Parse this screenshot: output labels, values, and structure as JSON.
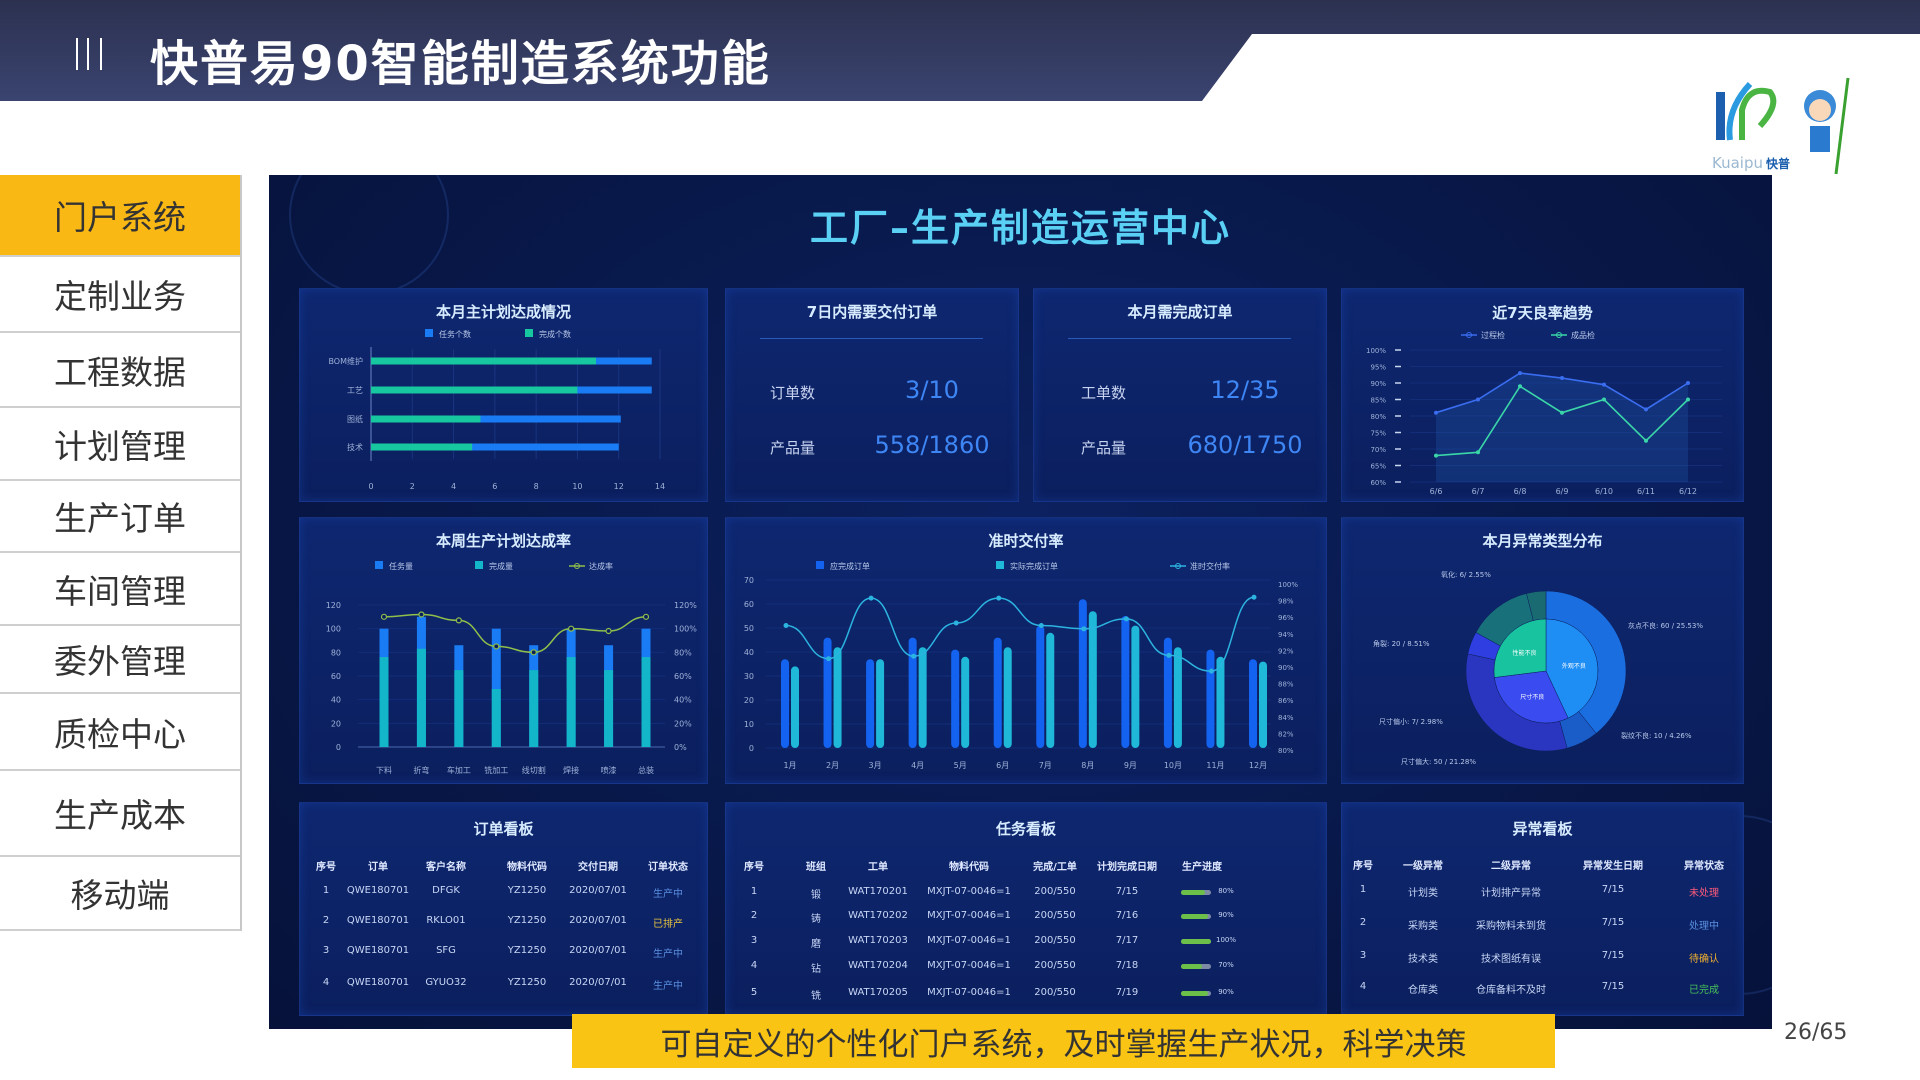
{
  "header": {
    "title": "快普易90智能制造系统功能",
    "menu_icon": "triple-bar-icon"
  },
  "logo": {
    "text": "Kuaipu",
    "cn": "快普"
  },
  "sidebar": {
    "items": [
      {
        "label": "门户系统",
        "active": true
      },
      {
        "label": "定制业务"
      },
      {
        "label": "工程数据"
      },
      {
        "label": "计划管理"
      },
      {
        "label": "生产订单"
      },
      {
        "label": "车间管理"
      },
      {
        "label": "委外管理"
      },
      {
        "label": "质检中心"
      },
      {
        "label": "生产成本"
      },
      {
        "label": "移动端"
      }
    ],
    "active_color": "#f9b814"
  },
  "dashboard": {
    "title": "工厂–生产制造运营中心",
    "delivery7": {
      "title": "7日内需要交付订单",
      "rows": [
        {
          "label": "订单数",
          "value": "3/10"
        },
        {
          "label": "产品量",
          "value": "558/1860"
        }
      ]
    },
    "month_orders": {
      "title": "本月需完成订单",
      "rows": [
        {
          "label": "工单数",
          "value": "12/35"
        },
        {
          "label": "产品量",
          "value": "680/1750"
        }
      ]
    },
    "order_board": {
      "title": "订单看板",
      "columns": [
        "序号",
        "订单",
        "客户名称",
        "物料代码",
        "交付日期",
        "订单状态"
      ],
      "rows": [
        [
          "1",
          "QWE180701",
          "DFGK",
          "YZ1250",
          "2020/07/01",
          "生产中"
        ],
        [
          "2",
          "QWE180701",
          "RKLO01",
          "YZ1250",
          "2020/07/01",
          "已排产"
        ],
        [
          "3",
          "QWE180701",
          "SFG",
          "YZ1250",
          "2020/07/01",
          "生产中"
        ],
        [
          "4",
          "QWE180701",
          "GYUO32",
          "YZ1250",
          "2020/07/01",
          "生产中"
        ]
      ]
    },
    "task_board": {
      "title": "任务看板",
      "columns": [
        "序号",
        "班组",
        "工单",
        "物料代码",
        "完成/工单",
        "计划完成日期",
        "生产进度"
      ],
      "rows": [
        [
          "1",
          "锻",
          "WAT170201",
          "MXJT-07-0046=1",
          "200/550",
          "7/15",
          "80%"
        ],
        [
          "2",
          "铸",
          "WAT170202",
          "MXJT-07-0046=1",
          "200/550",
          "7/16",
          "90%"
        ],
        [
          "3",
          "磨",
          "WAT170203",
          "MXJT-07-0046=1",
          "200/550",
          "7/17",
          "100%"
        ],
        [
          "4",
          "钻",
          "WAT170204",
          "MXJT-07-0046=1",
          "200/550",
          "7/18",
          "70%"
        ],
        [
          "5",
          "铣",
          "WAT170205",
          "MXJT-07-0046=1",
          "200/550",
          "7/19",
          "90%"
        ]
      ],
      "progress": [
        80,
        90,
        100,
        70,
        90
      ]
    },
    "exception_board": {
      "title": "异常看板",
      "columns": [
        "序号",
        "一级异常",
        "二级异常",
        "异常发生日期",
        "异常状态"
      ],
      "rows": [
        [
          "1",
          "计划类",
          "计划排产异常",
          "7/15",
          "未处理"
        ],
        [
          "2",
          "采购类",
          "采购物料未到货",
          "7/15",
          "处理中"
        ],
        [
          "3",
          "技术类",
          "技术图纸有误",
          "7/15",
          "待确认"
        ],
        [
          "4",
          "仓库类",
          "仓库备料不及时",
          "7/15",
          "已完成"
        ]
      ]
    },
    "status_colors": {
      "生产中": "#5a8fe0",
      "已排产": "#e6c340",
      "未处理": "#ff5a7a",
      "处理中": "#5a8fe0",
      "待确认": "#f0b030",
      "已完成": "#46c05a"
    }
  },
  "chart_data": [
    {
      "id": "master-plan",
      "type": "bar",
      "orientation": "horizontal",
      "stacked_overlay": true,
      "title": "本月主计划达成情况",
      "categories": [
        "BOM维护",
        "工艺",
        "图纸",
        "技术"
      ],
      "series": [
        {
          "name": "任务个数",
          "values": [
            13.6,
            13.6,
            12.1,
            12
          ],
          "color": "#1a7cf5"
        },
        {
          "name": "完成个数",
          "values": [
            10.9,
            10,
            5.3,
            4.9
          ],
          "color": "#16c7a0"
        }
      ],
      "xlim": [
        0,
        14
      ],
      "xticks": [
        "0",
        "2",
        "4",
        "6",
        "8",
        "10",
        "12",
        "14"
      ],
      "grid": true,
      "legend": "top"
    },
    {
      "id": "quality-trend",
      "type": "line",
      "title": "近7天良率趋势",
      "categories": [
        "6/6",
        "6/7",
        "6/8",
        "6/9",
        "6/10",
        "6/11",
        "6/12"
      ],
      "series": [
        {
          "name": "过程检",
          "values": [
            81,
            85,
            93,
            91.5,
            89.5,
            82,
            90
          ],
          "color": "#3a6df0"
        },
        {
          "name": "成品检",
          "values": [
            68,
            69,
            89,
            81,
            85,
            72.5,
            85
          ],
          "color": "#3ad6a8"
        }
      ],
      "ylim": [
        60,
        100
      ],
      "yticks": [
        "60%",
        "65%",
        "70%",
        "75%",
        "80%",
        "85%",
        "90%",
        "95%",
        "100%"
      ],
      "legend": "top"
    },
    {
      "id": "weekly-plan",
      "type": "bar",
      "title": "本周生产计划达成率",
      "categories": [
        "下料",
        "折弯",
        "车加工",
        "铣加工",
        "线切割",
        "焊接",
        "喷漆",
        "总装"
      ],
      "series": [
        {
          "name": "任务量",
          "values": [
            100,
            110,
            86,
            100,
            86,
            100,
            86,
            100
          ],
          "color": "#1a7cf5"
        },
        {
          "name": "完成量",
          "values": [
            76,
            83,
            65,
            49,
            65,
            76,
            65,
            76
          ],
          "color": "#13b5c8"
        },
        {
          "name": "达成率",
          "type": "line",
          "axis": "right",
          "values": [
            110,
            112,
            107,
            85,
            80,
            100,
            98,
            110
          ],
          "color": "#8fbf4a"
        }
      ],
      "ylim": [
        0,
        120
      ],
      "yticks": [
        "0",
        "20",
        "40",
        "60",
        "80",
        "100",
        "120"
      ],
      "y2lim": [
        0,
        120
      ],
      "y2ticks": [
        "0%",
        "20%",
        "40%",
        "60%",
        "80%",
        "100%",
        "120%"
      ],
      "legend": "top"
    },
    {
      "id": "on-time",
      "type": "bar",
      "title": "准时交付率",
      "categories": [
        "1月",
        "2月",
        "3月",
        "4月",
        "5月",
        "6月",
        "7月",
        "8月",
        "9月",
        "10月",
        "11月",
        "12月"
      ],
      "series": [
        {
          "name": "应完成订单",
          "values": [
            37,
            46,
            37,
            46,
            41,
            46,
            51,
            62,
            55,
            46,
            41,
            37
          ],
          "color": "#1463f0"
        },
        {
          "name": "实际完成订单",
          "values": [
            34,
            42,
            37,
            42,
            38,
            42,
            48,
            57,
            51,
            42,
            38,
            36
          ],
          "color": "#1fb8d8"
        },
        {
          "name": "准时交付率",
          "type": "line",
          "axis": "right",
          "values": [
            95,
            91,
            98.3,
            91.3,
            95.3,
            98.3,
            95,
            94.6,
            95.8,
            91.4,
            89.5,
            98.4
          ],
          "color": "#2cb4e0"
        }
      ],
      "ylim": [
        0,
        70
      ],
      "yticks": [
        "0",
        "10",
        "20",
        "30",
        "40",
        "50",
        "60",
        "70"
      ],
      "y2lim": [
        80,
        100
      ],
      "y2ticks": [
        "80%",
        "82%",
        "84%",
        "86%",
        "88%",
        "90%",
        "92%",
        "94%",
        "96%",
        "98%",
        "100%"
      ],
      "legend": "top"
    },
    {
      "id": "exception-types",
      "type": "pie",
      "title": "本月异常类型分布",
      "inner": [
        {
          "label": "外观不良",
          "value": 43,
          "color": "#1e8ef5"
        },
        {
          "label": "尺寸不良",
          "value": 30,
          "color": "#3a4cf0"
        },
        {
          "label": "性能不良",
          "value": 27,
          "color": "#18c3a0"
        }
      ],
      "outer": [
        {
          "label": "灰点不良: 60 / 25.53%",
          "value": 60,
          "color": "#1a6ee0"
        },
        {
          "label": "裂纹不良: 10 / 4.26%",
          "value": 10,
          "color": "#1a5cc8"
        },
        {
          "label": "尺寸偏大: 50 / 21.28%",
          "value": 50,
          "color": "#2a36c0"
        },
        {
          "label": "尺寸偏小: 7/ 2.98%",
          "value": 7,
          "color": "#2f3ee0"
        },
        {
          "label": "角裂: 20 / 8.51%",
          "value": 20,
          "color": "#17707a"
        },
        {
          "label": "氧化: 6/ 2.55%",
          "value": 6,
          "color": "#1a6a72"
        }
      ]
    }
  ],
  "banner": {
    "text": "可自定义的个性化门户系统，及时掌握生产状况，科学决策"
  },
  "page": {
    "number": "26/65"
  }
}
